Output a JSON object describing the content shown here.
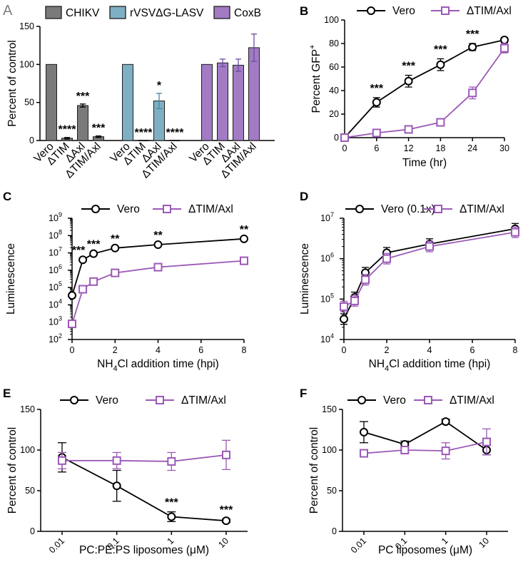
{
  "colors": {
    "vero": "#000000",
    "ko": "#9b59b6",
    "chikv": "#7a7a7a",
    "lasv": "#7fafc3",
    "coxb": "#a27bc4",
    "bar_border": "#1e1e1e"
  },
  "panels": {
    "A": "A",
    "B": "B",
    "C": "C",
    "D": "D",
    "E": "E",
    "F": "F"
  },
  "chart_data": [
    {
      "panel": "A",
      "type": "bar",
      "ylabel": "Percent of control",
      "ylim": [
        0,
        150
      ],
      "yticks": [
        "0",
        "50",
        "100",
        "150"
      ],
      "legend": [
        "CHIKV",
        "rVSVΔG-LASV",
        "CoxB"
      ],
      "groups": [
        {
          "name": "CHIKV",
          "categories": [
            "Vero",
            "ΔTIM",
            "ΔAxl",
            "ΔTIM/Axl"
          ],
          "values": [
            100,
            3,
            46,
            5
          ],
          "errors": [
            0,
            1,
            2,
            1
          ],
          "sig": [
            "",
            "****",
            "***",
            "***"
          ]
        },
        {
          "name": "rVSVΔG-LASV",
          "categories": [
            "Vero",
            "ΔTIM",
            "ΔAxl",
            "ΔTIM/Axl"
          ],
          "values": [
            100,
            0,
            52,
            0
          ],
          "errors": [
            0,
            0,
            10,
            0
          ],
          "sig": [
            "",
            "****",
            "*",
            "****"
          ]
        },
        {
          "name": "CoxB",
          "categories": [
            "Vero",
            "ΔTIM",
            "ΔAxl",
            "ΔTIM/Axl"
          ],
          "values": [
            100,
            102,
            99,
            122
          ],
          "errors": [
            0,
            5,
            8,
            18
          ],
          "sig": [
            "",
            "",
            "",
            ""
          ]
        }
      ]
    },
    {
      "panel": "B",
      "type": "line",
      "xlabel": "Time (hr)",
      "ylabel": "Percent GFP",
      "ylabel_sup": "+",
      "xlim": [
        0,
        30
      ],
      "ylim": [
        0,
        100
      ],
      "xticks": [
        "0",
        "6",
        "12",
        "18",
        "24",
        "30"
      ],
      "yticks": [
        "0",
        "20",
        "40",
        "60",
        "80",
        "100"
      ],
      "series": [
        {
          "name": "Vero",
          "x": [
            0,
            6,
            12,
            18,
            24,
            30
          ],
          "y": [
            0,
            30,
            48,
            62,
            77,
            83
          ],
          "err": [
            0,
            4,
            5,
            5,
            3,
            2
          ]
        },
        {
          "name": "ΔTIM/Axl",
          "x": [
            0,
            6,
            12,
            18,
            24,
            30
          ],
          "y": [
            0,
            4,
            7,
            13,
            38,
            76
          ],
          "err": [
            0,
            1,
            1,
            3,
            5,
            4
          ]
        }
      ],
      "sig": [
        {
          "x": 6,
          "label": "***"
        },
        {
          "x": 12,
          "label": "***"
        },
        {
          "x": 18,
          "label": "***"
        },
        {
          "x": 24,
          "label": "***"
        }
      ]
    },
    {
      "panel": "C",
      "type": "line",
      "xlabel": "NH4Cl addition time (hpi)",
      "xlabel_parts": [
        "NH",
        "4",
        "Cl addition time (hpi)"
      ],
      "ylabel": "Luminescence",
      "yscale": "log",
      "xlim": [
        0,
        8
      ],
      "ylim": [
        100,
        1000000000
      ],
      "xticks": [
        "0",
        "2",
        "4",
        "6",
        "8"
      ],
      "yticks": [
        "10",
        "10",
        "10",
        "10",
        "10",
        "10",
        "10",
        "10"
      ],
      "ytick_exps": [
        "2",
        "3",
        "4",
        "5",
        "6",
        "7",
        "8",
        "9"
      ],
      "series": [
        {
          "name": "Vero",
          "x": [
            0,
            0.5,
            1,
            2,
            4,
            8
          ],
          "y": [
            35000,
            4000000,
            9000000,
            19000000,
            30000000,
            65000000
          ]
        },
        {
          "name": "ΔTIM/Axl",
          "x": [
            0,
            0.5,
            1,
            2,
            4,
            8
          ],
          "y": [
            800,
            80000,
            220000,
            700000,
            1500000,
            3500000
          ]
        }
      ],
      "sig": [
        {
          "x": 0.5,
          "label": "***"
        },
        {
          "x": 1,
          "label": "***"
        },
        {
          "x": 2,
          "label": "**"
        },
        {
          "x": 4,
          "label": "**"
        },
        {
          "x": 8,
          "label": "**"
        }
      ]
    },
    {
      "panel": "D",
      "type": "line",
      "xlabel": "NH4Cl addition time (hpi)",
      "xlabel_parts": [
        "NH",
        "4",
        "Cl addition time (hpi)"
      ],
      "ylabel": "Luminescence",
      "yscale": "log",
      "xlim": [
        0,
        8
      ],
      "ylim": [
        10000,
        10000000
      ],
      "xticks": [
        "0",
        "2",
        "4",
        "6",
        "8"
      ],
      "yticks": [
        "10",
        "10",
        "10",
        "10"
      ],
      "ytick_exps": [
        "4",
        "5",
        "6",
        "7"
      ],
      "series": [
        {
          "name": "Vero (0.1x)",
          "x": [
            0,
            0.5,
            1,
            2,
            4,
            8
          ],
          "y": [
            32000,
            110000,
            450000,
            1400000,
            2300000,
            5500000
          ]
        },
        {
          "name": "ΔTIM/Axl",
          "x": [
            0,
            0.5,
            1,
            2,
            4,
            8
          ],
          "y": [
            65000,
            90000,
            300000,
            1000000,
            2000000,
            4500000
          ]
        }
      ]
    },
    {
      "panel": "E",
      "type": "line",
      "xlabel": "PC:PE:PS liposomes (μM)",
      "ylabel": "Percent of control",
      "xscale": "log",
      "ylim": [
        0,
        150
      ],
      "xticks": [
        "0.01",
        "0.1",
        "1",
        "10"
      ],
      "yticks": [
        "0",
        "50",
        "100",
        "150"
      ],
      "series": [
        {
          "name": "Vero",
          "x": [
            0.01,
            0.1,
            1,
            10
          ],
          "y": [
            91,
            56,
            18,
            13
          ],
          "err": [
            18,
            19,
            6,
            2
          ]
        },
        {
          "name": "ΔTIM/Axl",
          "x": [
            0.01,
            0.1,
            1,
            10
          ],
          "y": [
            87,
            87,
            86,
            94
          ],
          "err": [
            10,
            10,
            11,
            18
          ]
        }
      ],
      "sig": [
        {
          "x": 1,
          "label": "***"
        },
        {
          "x": 10,
          "label": "***"
        }
      ]
    },
    {
      "panel": "F",
      "type": "line",
      "xlabel": "PC liposomes (μM)",
      "ylabel": "Percent of control",
      "xscale": "log",
      "ylim": [
        0,
        150
      ],
      "xticks": [
        "0.01",
        "0.1",
        "1",
        "10"
      ],
      "yticks": [
        "0",
        "50",
        "100",
        "150"
      ],
      "series": [
        {
          "name": "Vero",
          "x": [
            0.01,
            0.1,
            1,
            10
          ],
          "y": [
            122,
            107,
            135,
            100
          ],
          "err": [
            13,
            4,
            3,
            6
          ]
        },
        {
          "name": "ΔTIM/Axl",
          "x": [
            0.01,
            0.1,
            1,
            10
          ],
          "y": [
            96,
            100,
            99,
            110
          ],
          "err": [
            2,
            3,
            10,
            16
          ]
        }
      ]
    }
  ]
}
